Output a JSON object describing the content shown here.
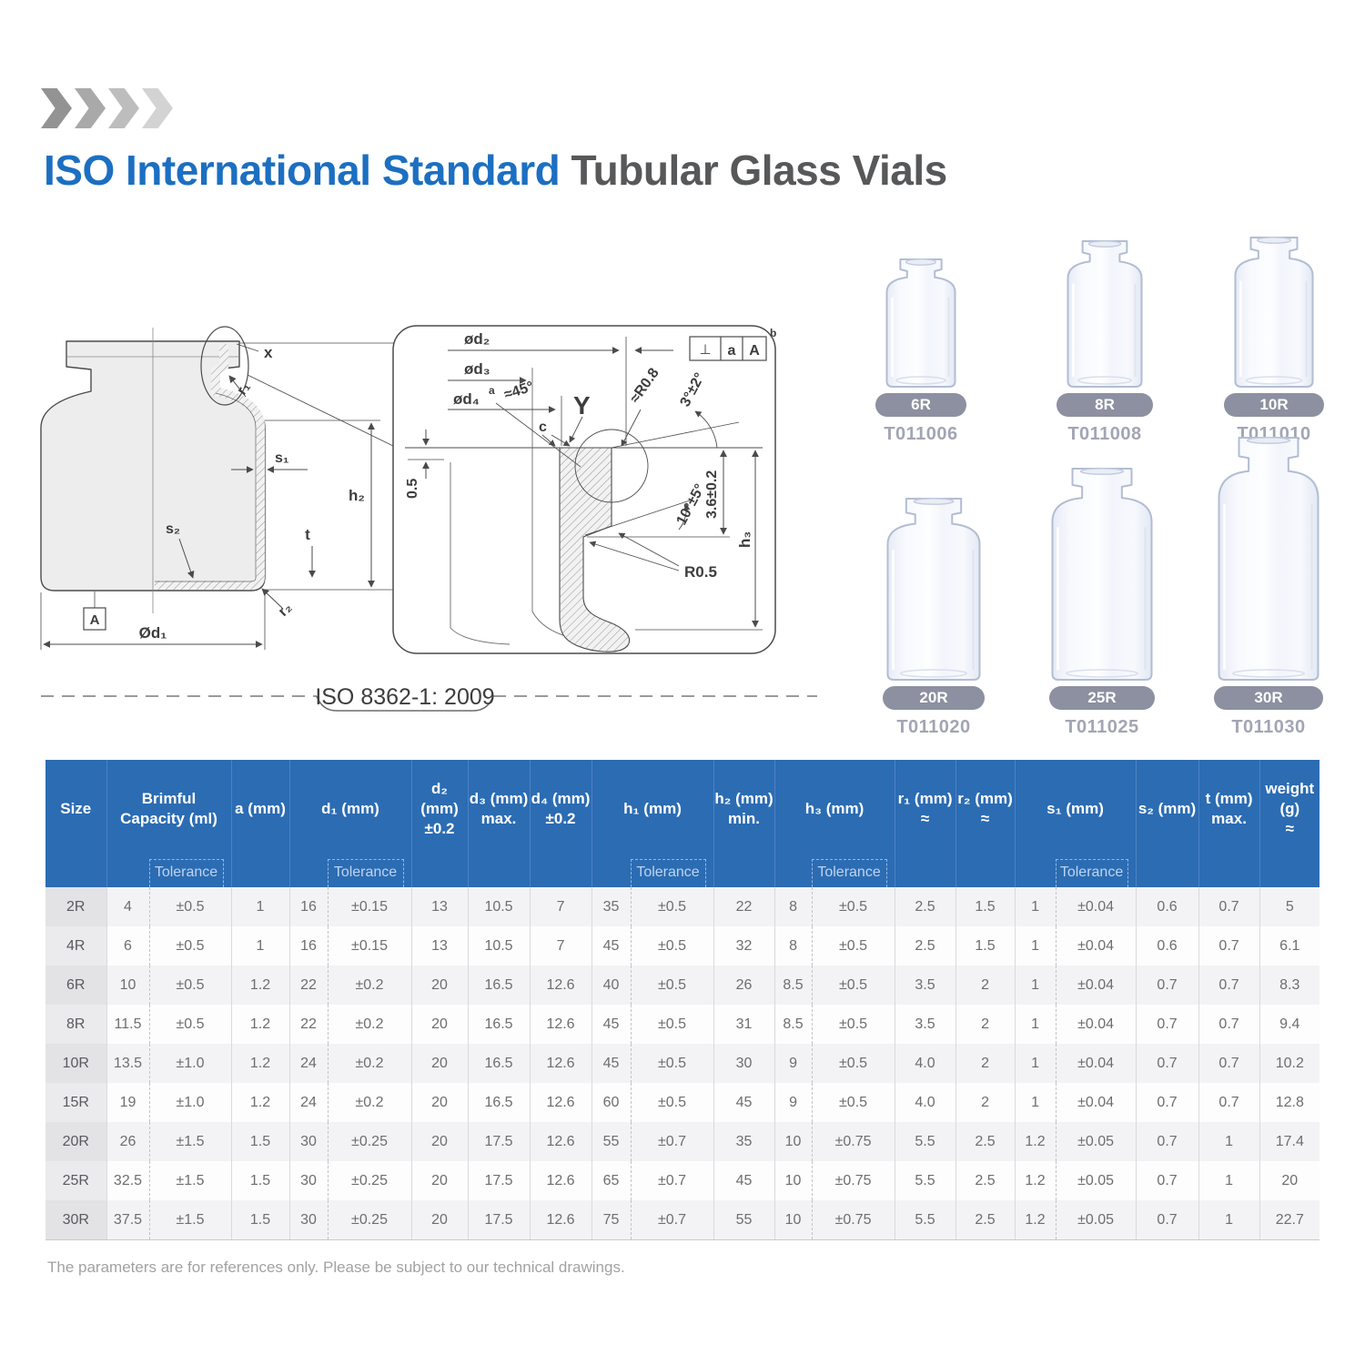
{
  "header": {
    "title_primary": "ISO International Standard",
    "title_secondary": "Tubular Glass Vials",
    "primary_color": "#1c6fc1",
    "secondary_color": "#57585a",
    "chevron_colors": [
      "#939393",
      "#a9a9a9",
      "#bdbdbd",
      "#d3d3d3"
    ]
  },
  "drawing": {
    "iso_standard": "ISO 8362-1: 2009",
    "left": {
      "x": "x",
      "r1": "r₁",
      "s1": "s₁",
      "h1": "h₁",
      "h2": "h₂",
      "s2": "s₂",
      "t": "t",
      "r2": "r₂",
      "datum": "A",
      "d1": "Ød₁"
    },
    "detail": {
      "d2": "ød₂",
      "d3": "ød₃",
      "d4": "ød₄",
      "d4_sup": "a",
      "angle45": "≈45°",
      "y_mark": "Y",
      "r08": "≈R0.8",
      "angle3": "3°±2°",
      "c": "c",
      "offset05": "0.5",
      "depth36": "3.6±0.2",
      "angle10": "10°±5°",
      "r05": "R0.5",
      "h3": "h₃",
      "datum_perp": "⊥",
      "datum_a": "a",
      "datum_A": "A",
      "datum_sup": "b"
    }
  },
  "vials": [
    {
      "size": "6R",
      "code": "T011006"
    },
    {
      "size": "8R",
      "code": "T011008"
    },
    {
      "size": "10R",
      "code": "T011010"
    },
    {
      "size": "20R",
      "code": "T011020"
    },
    {
      "size": "25R",
      "code": "T011025"
    },
    {
      "size": "30R",
      "code": "T011030"
    }
  ],
  "vial_badge_color": "#8c90a0",
  "table": {
    "header_bg": "#2b6cb3",
    "tolerance_label": "Tolerance",
    "columns": [
      {
        "id": "size",
        "pair": false,
        "label_lines": [
          "Size"
        ]
      },
      {
        "id": "capacity",
        "pair": true,
        "label_lines": [
          "Brimful",
          "Capacity (ml)"
        ]
      },
      {
        "id": "a",
        "pair": false,
        "label_lines": [
          "a (mm)"
        ]
      },
      {
        "id": "d1",
        "pair": true,
        "label_lines": [
          "d₁ (mm)"
        ]
      },
      {
        "id": "d2",
        "pair": false,
        "label_lines": [
          "d₂ (mm)",
          "±0.2"
        ]
      },
      {
        "id": "d3",
        "pair": false,
        "label_lines": [
          "d₃ (mm)",
          "max."
        ]
      },
      {
        "id": "d4",
        "pair": false,
        "label_lines": [
          "d₄ (mm)",
          "±0.2"
        ]
      },
      {
        "id": "h1",
        "pair": true,
        "label_lines": [
          "h₁ (mm)"
        ]
      },
      {
        "id": "h2",
        "pair": false,
        "label_lines": [
          "h₂ (mm)",
          "min."
        ]
      },
      {
        "id": "h3",
        "pair": true,
        "label_lines": [
          "h₃ (mm)"
        ]
      },
      {
        "id": "r1",
        "pair": false,
        "label_lines": [
          "r₁ (mm)",
          "≈"
        ]
      },
      {
        "id": "r2",
        "pair": false,
        "label_lines": [
          "r₂ (mm)",
          "≈"
        ]
      },
      {
        "id": "s1",
        "pair": true,
        "label_lines": [
          "s₁ (mm)"
        ]
      },
      {
        "id": "s2",
        "pair": false,
        "label_lines": [
          "s₂ (mm)"
        ]
      },
      {
        "id": "t",
        "pair": false,
        "label_lines": [
          "t (mm)",
          "max."
        ]
      },
      {
        "id": "weight",
        "pair": false,
        "label_lines": [
          "weight",
          "(g)",
          "≈"
        ]
      }
    ],
    "rows": [
      {
        "size": "2R",
        "cells": [
          "4",
          "±0.5",
          "1",
          "16",
          "±0.15",
          "13",
          "10.5",
          "7",
          "35",
          "±0.5",
          "22",
          "8",
          "±0.5",
          "2.5",
          "1.5",
          "1",
          "±0.04",
          "0.6",
          "0.7",
          "5"
        ]
      },
      {
        "size": "4R",
        "cells": [
          "6",
          "±0.5",
          "1",
          "16",
          "±0.15",
          "13",
          "10.5",
          "7",
          "45",
          "±0.5",
          "32",
          "8",
          "±0.5",
          "2.5",
          "1.5",
          "1",
          "±0.04",
          "0.6",
          "0.7",
          "6.1"
        ]
      },
      {
        "size": "6R",
        "cells": [
          "10",
          "±0.5",
          "1.2",
          "22",
          "±0.2",
          "20",
          "16.5",
          "12.6",
          "40",
          "±0.5",
          "26",
          "8.5",
          "±0.5",
          "3.5",
          "2",
          "1",
          "±0.04",
          "0.7",
          "0.7",
          "8.3"
        ]
      },
      {
        "size": "8R",
        "cells": [
          "11.5",
          "±0.5",
          "1.2",
          "22",
          "±0.2",
          "20",
          "16.5",
          "12.6",
          "45",
          "±0.5",
          "31",
          "8.5",
          "±0.5",
          "3.5",
          "2",
          "1",
          "±0.04",
          "0.7",
          "0.7",
          "9.4"
        ]
      },
      {
        "size": "10R",
        "cells": [
          "13.5",
          "±1.0",
          "1.2",
          "24",
          "±0.2",
          "20",
          "16.5",
          "12.6",
          "45",
          "±0.5",
          "30",
          "9",
          "±0.5",
          "4.0",
          "2",
          "1",
          "±0.04",
          "0.7",
          "0.7",
          "10.2"
        ]
      },
      {
        "size": "15R",
        "cells": [
          "19",
          "±1.0",
          "1.2",
          "24",
          "±0.2",
          "20",
          "16.5",
          "12.6",
          "60",
          "±0.5",
          "45",
          "9",
          "±0.5",
          "4.0",
          "2",
          "1",
          "±0.04",
          "0.7",
          "0.7",
          "12.8"
        ]
      },
      {
        "size": "20R",
        "cells": [
          "26",
          "±1.5",
          "1.5",
          "30",
          "±0.25",
          "20",
          "17.5",
          "12.6",
          "55",
          "±0.7",
          "35",
          "10",
          "±0.75",
          "5.5",
          "2.5",
          "1.2",
          "±0.05",
          "0.7",
          "1",
          "17.4"
        ]
      },
      {
        "size": "25R",
        "cells": [
          "32.5",
          "±1.5",
          "1.5",
          "30",
          "±0.25",
          "20",
          "17.5",
          "12.6",
          "65",
          "±0.7",
          "45",
          "10",
          "±0.75",
          "5.5",
          "2.5",
          "1.2",
          "±0.05",
          "0.7",
          "1",
          "20"
        ]
      },
      {
        "size": "30R",
        "cells": [
          "37.5",
          "±1.5",
          "1.5",
          "30",
          "±0.25",
          "20",
          "17.5",
          "12.6",
          "75",
          "±0.7",
          "55",
          "10",
          "±0.75",
          "5.5",
          "2.5",
          "1.2",
          "±0.05",
          "0.7",
          "1",
          "22.7"
        ]
      }
    ],
    "footnote": "The parameters are for references only. Please be subject to our technical drawings."
  }
}
